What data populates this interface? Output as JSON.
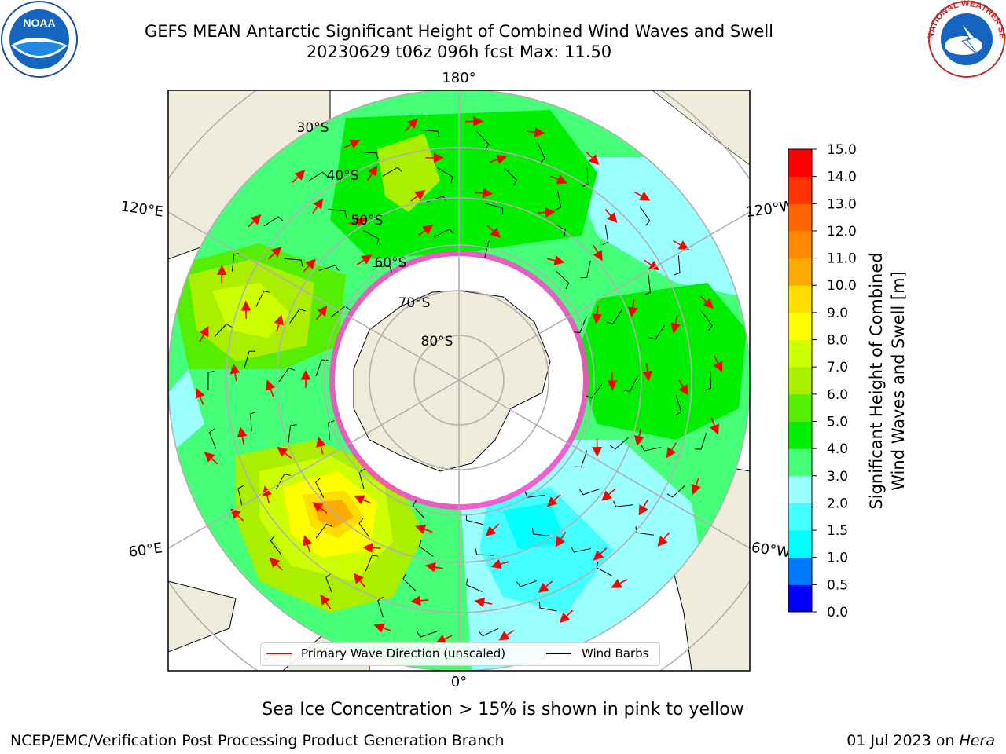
{
  "title": {
    "line1": "GEFS MEAN Antarctic Significant Height of Combined Wind Waves and Swell",
    "line2": "20230629 t06z 096h fcst   Max: 11.50"
  },
  "logos": {
    "left": "NOAA",
    "right": "NATIONAL WEATHER SERVICE"
  },
  "map": {
    "longitude_labels": [
      "180°",
      "120°E",
      "120°W",
      "60°E",
      "60°W",
      "0°"
    ],
    "latitude_labels": [
      "30°S",
      "40°S",
      "50°S",
      "60°S",
      "70°S",
      "80°S"
    ],
    "colors": {
      "land": "#efecdc",
      "ice_white": "#ffffff",
      "ice_edge": "#ff44cc",
      "grid": "#b0b0b0"
    }
  },
  "legend": {
    "wave_label": "Primary Wave Direction (unscaled)",
    "wind_label": "Wind Barbs",
    "wave_color": "#ff0000",
    "wind_color": "#000000"
  },
  "colorbar": {
    "label_line1": "Significant Height of Combined",
    "label_line2": "Wind Waves and Swell [m]",
    "ticks": [
      "0.0",
      "0.5",
      "1.0",
      "1.5",
      "2.0",
      "3.0",
      "4.0",
      "5.0",
      "6.0",
      "7.0",
      "8.0",
      "9.0",
      "10.0",
      "11.0",
      "12.0",
      "13.0",
      "14.0",
      "15.0"
    ],
    "colors": [
      "#0000ff",
      "#0077ff",
      "#00ffff",
      "#44ffff",
      "#99ffff",
      "#44ff77",
      "#00ee00",
      "#55ee00",
      "#aaee00",
      "#ccff00",
      "#ffff00",
      "#ffdd00",
      "#ffaa00",
      "#ff8800",
      "#ff6600",
      "#ff3300",
      "#ff0000"
    ]
  },
  "notes": {
    "ice": "Sea Ice Concentration > 15% is shown in pink to yellow"
  },
  "footer": {
    "left": "NCEP/EMC/Verification Post Processing Product Generation Branch",
    "right_date": "01 Jul 2023 on ",
    "right_host": "Hera"
  }
}
